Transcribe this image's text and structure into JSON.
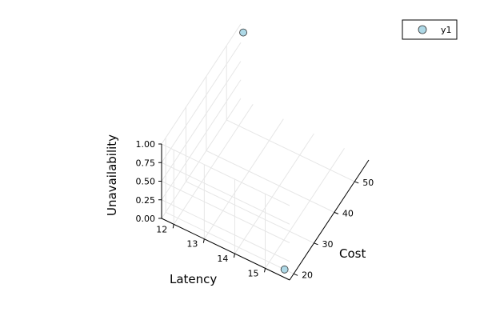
{
  "chart_data": {
    "type": "scatter",
    "title": "",
    "xlabel": "Cost",
    "ylabel": "Latency",
    "zlabel": "Unavailability",
    "xlim": [
      18,
      57
    ],
    "ylim": [
      11.6,
      15.8
    ],
    "zlim": [
      0,
      1
    ],
    "x_ticks": [
      "20",
      "30",
      "40",
      "50"
    ],
    "y_ticks": [
      "12",
      "13",
      "14",
      "15"
    ],
    "z_ticks": [
      "0.00",
      "0.25",
      "0.50",
      "0.75",
      "1.00"
    ],
    "grid": true,
    "legend": "top-right",
    "series": [
      {
        "name": "y1",
        "color": "#add8e6",
        "points": [
          {
            "x": 20,
            "y": 15.5,
            "z": 0.0
          },
          {
            "x": 55.2,
            "y": 11.8,
            "z": 1.0
          }
        ]
      }
    ]
  }
}
